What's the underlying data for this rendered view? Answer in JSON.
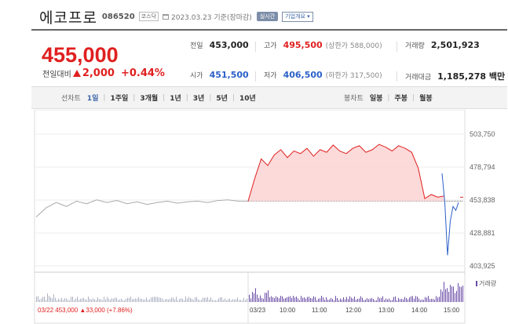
{
  "header": {
    "name": "에코프로",
    "code": "086520",
    "market": "코스닥",
    "date_text": "2023.03.23 기준(장마감)",
    "realtime_label": "실시간",
    "company_info_label": "기업개요 ▾"
  },
  "summary": {
    "current_price": "455,000",
    "change_label": "전일대비",
    "change_amount": "2,000",
    "change_rate": "+0.44%",
    "prev_close_label": "전일",
    "prev_close": "453,000",
    "high_label": "고가",
    "high": "495,500",
    "upper_limit": "(상한가 588,000)",
    "volume_label": "거래량",
    "volume": "2,501,923",
    "open_label": "시가",
    "open": "451,500",
    "low_label": "저가",
    "low": "406,500",
    "lower_limit": "(하한가 317,500)",
    "value_label": "거래대금",
    "value": "1,185,278 백만"
  },
  "tabs": {
    "line_label": "선차트",
    "line_tabs": [
      "1일",
      "1주일",
      "3개월",
      "1년",
      "3년",
      "5년",
      "10년"
    ],
    "selected": "1일",
    "candle_label": "봉차트",
    "candle_tabs": [
      "일봉",
      "주봉",
      "월봉"
    ]
  },
  "chart_data": {
    "type": "line",
    "yticks": [
      "503,750",
      "478,794",
      "453,838",
      "428,881",
      "403,925"
    ],
    "ylim": [
      403925,
      503750
    ],
    "prev_close": 453000,
    "previous_day_label": "03/22 453,000 ▲33,000 (+7.86%)",
    "xticks": [
      "03/23",
      "10:00",
      "11:00",
      "12:00",
      "13:00",
      "14:00",
      "15:00"
    ],
    "volume_legend": "거래량",
    "colors": {
      "up": "#e02020",
      "down": "#2b60c9",
      "prev_day": "#aaaaaa",
      "volume_prev": "#aab0c0",
      "volume_today": "#6a4ca8"
    },
    "prev_day_series": [
      441000,
      448000,
      452000,
      449000,
      453000,
      451000,
      454000,
      452000,
      453500,
      451000,
      452500,
      450500,
      452000,
      453000,
      451500,
      452500,
      453000,
      452000,
      453500,
      454000,
      453000,
      453000
    ],
    "today_series": [
      453000,
      470000,
      485000,
      480000,
      488000,
      492000,
      486000,
      491000,
      489000,
      493000,
      487000,
      492000,
      490000,
      495500,
      491000,
      489000,
      493000,
      495000,
      490000,
      492000,
      496000,
      494000,
      491000,
      495000,
      493000,
      490000,
      478000,
      455000,
      458000,
      456000,
      457000
    ],
    "today_series_drop": [
      474000,
      452000,
      412000,
      438000,
      449000,
      446000,
      452000
    ]
  }
}
